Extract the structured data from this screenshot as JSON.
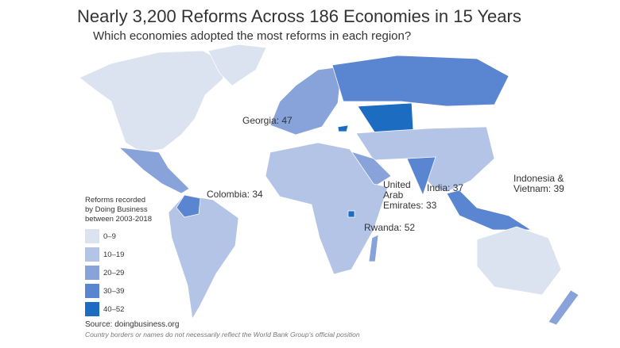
{
  "header": {
    "title": "Nearly 3,200 Reforms Across 186 Economies in 15 Years",
    "subtitle": "Which economies adopted the most reforms in each region?"
  },
  "annotations": [
    {
      "lines": [
        "Georgia: 47"
      ]
    },
    {
      "lines": [
        "Colombia: 34"
      ]
    },
    {
      "lines": [
        "United",
        "Arab",
        "Emirates: 33"
      ]
    },
    {
      "lines": [
        "India: 37"
      ]
    },
    {
      "lines": [
        "Rwanda: 52"
      ]
    },
    {
      "lines": [
        "Indonesia &",
        "Vietnam: 39"
      ]
    }
  ],
  "legend": {
    "title": [
      "Reforms recorded",
      "by Doing Business",
      "between 2003-2018"
    ],
    "items": [
      {
        "label": "0–9",
        "color": "#dbe3f1"
      },
      {
        "label": "10–19",
        "color": "#b3c4e7"
      },
      {
        "label": "20–29",
        "color": "#87a3da"
      },
      {
        "label": "30–39",
        "color": "#5a85d0"
      },
      {
        "label": "40–52",
        "color": "#1c6cc2"
      }
    ]
  },
  "footer": {
    "source": "Source: doingbusiness.org",
    "disclaimer": "Country borders or names do not necessarily reflect the World Bank Group's official position"
  }
}
